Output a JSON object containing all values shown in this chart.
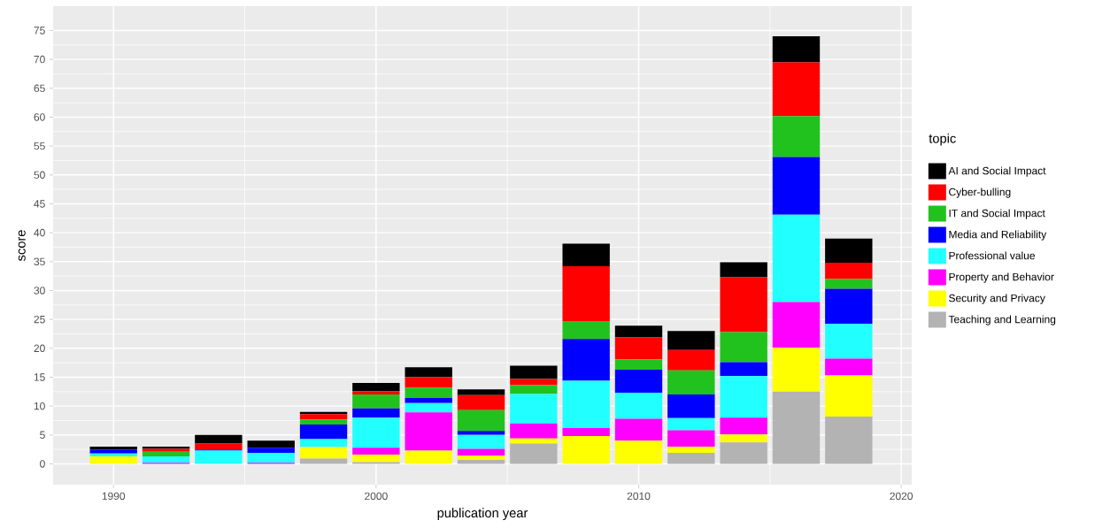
{
  "chart_data": {
    "type": "bar",
    "stacked": true,
    "xlabel": "publication year",
    "ylabel": "score",
    "legend_title": "topic",
    "x": [
      1990,
      1992,
      1994,
      1996,
      1998,
      2000,
      2002,
      2004,
      2006,
      2008,
      2010,
      2012,
      2014,
      2016,
      2018
    ],
    "series": [
      {
        "name": "Teaching and Learning",
        "color": "#b3b3b3",
        "values": [
          0,
          0,
          0,
          0,
          0.9,
          0.3,
          null,
          0.7,
          3.5,
          0,
          0,
          1.9,
          3.7,
          12.5,
          8.2
        ]
      },
      {
        "name": "Security and Privacy",
        "color": "#ffff00",
        "values": [
          1.3,
          0,
          0,
          0,
          2.0,
          1.3,
          2.3,
          0.7,
          0.9,
          4.8,
          4.0,
          1.1,
          1.4,
          7.6,
          7.1
        ]
      },
      {
        "name": "Property and Behavior",
        "color": "#ff00ff",
        "values": [
          0,
          0.2,
          0,
          0.2,
          0,
          1.2,
          6.6,
          1.2,
          2.6,
          1.4,
          3.8,
          2.8,
          2.9,
          7.9,
          2.9
        ]
      },
      {
        "name": "Professional value",
        "color": "#22ffff",
        "values": [
          0.5,
          1.1,
          2.3,
          1.7,
          1.4,
          5.2,
          1.6,
          2.4,
          5.1,
          8.2,
          4.5,
          2.1,
          7.2,
          15.1,
          6.0
        ]
      },
      {
        "name": "Media and Reliability",
        "color": "#0000ff",
        "values": [
          0.7,
          0,
          0.2,
          0.9,
          2.5,
          1.6,
          0.9,
          0.7,
          0,
          7.2,
          4.0,
          4.1,
          2.4,
          10.0,
          6.1
        ]
      },
      {
        "name": "IT and Social Impact",
        "color": "#22c21e",
        "values": [
          0,
          0.8,
          0,
          0,
          0.9,
          2.4,
          1.8,
          3.6,
          1.5,
          3.1,
          1.8,
          4.2,
          5.2,
          7.1,
          1.7
        ]
      },
      {
        "name": "Cyber-bulling",
        "color": "#ff0000",
        "values": [
          0,
          0.5,
          1.0,
          0,
          0.9,
          0.6,
          1.8,
          2.6,
          1.1,
          9.5,
          3.8,
          3.5,
          9.5,
          9.3,
          2.8
        ]
      },
      {
        "name": "AI and Social Impact",
        "color": "#000000",
        "values": [
          0.5,
          0.4,
          1.5,
          1.2,
          0.4,
          1.4,
          1.7,
          1.0,
          2.3,
          3.9,
          2.0,
          3.3,
          2.6,
          4.5,
          4.2
        ]
      }
    ],
    "xlim": [
      1987.7,
      2020.4
    ],
    "ylim": [
      -3.6,
      79.2
    ],
    "xticks": [
      1990,
      2000,
      2010,
      2020
    ],
    "yticks": [
      0,
      5,
      10,
      15,
      20,
      25,
      30,
      35,
      40,
      45,
      50,
      55,
      60,
      65,
      70,
      75
    ],
    "grid": true,
    "legend": "right"
  }
}
